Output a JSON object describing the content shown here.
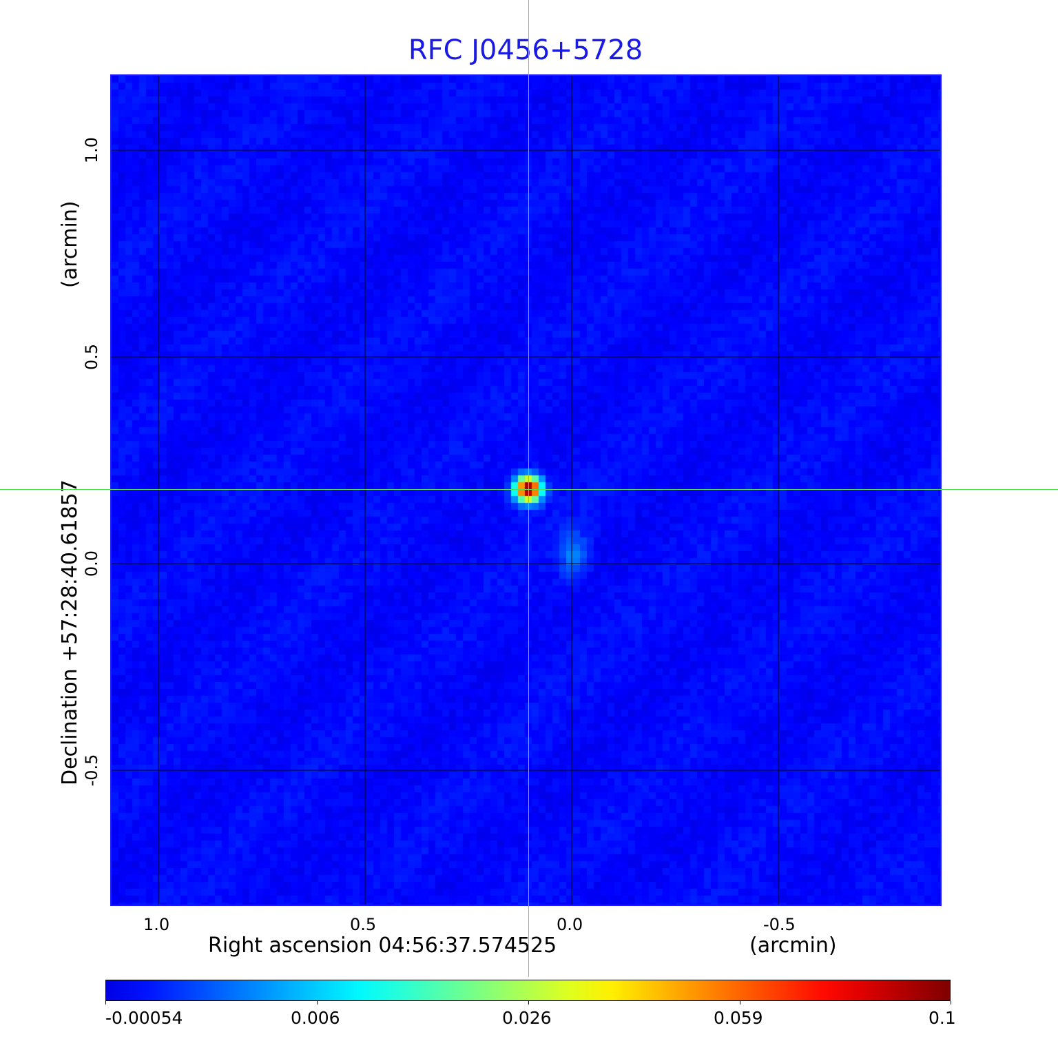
{
  "chart_data": {
    "type": "heatmap",
    "title": "RFC J0456+5728",
    "xlabel": "Right ascension  04:56:37.574525",
    "xunit": "(arcmin)",
    "ylabel": "Declination  +57:28:40.61857",
    "yunit": "(arcmin)",
    "xlim": [
      1.12,
      -0.9
    ],
    "ylim": [
      -0.83,
      1.18
    ],
    "xticks": [
      {
        "value": 1.0,
        "label": "1.0"
      },
      {
        "value": 0.5,
        "label": "0.5"
      },
      {
        "value": 0.0,
        "label": "0.0"
      },
      {
        "value": -0.5,
        "label": "-0.5"
      }
    ],
    "yticks": [
      {
        "value": 1.0,
        "label": "1.0"
      },
      {
        "value": 0.5,
        "label": "0.5"
      },
      {
        "value": 0.0,
        "label": "0.0"
      },
      {
        "value": -0.5,
        "label": "-0.5"
      }
    ],
    "grid": true,
    "crosshair": {
      "x": 0.105,
      "y": 0.18
    },
    "sources": [
      {
        "x": 0.105,
        "y": 0.18,
        "peak": 0.1
      },
      {
        "x": -0.005,
        "y": 0.02,
        "peak": 0.004
      }
    ],
    "colormap": "jet",
    "colorbar": {
      "position": "bottom",
      "ticks": [
        "-0.00054",
        "0.006",
        "0.026",
        "0.059",
        "0.1"
      ],
      "range": [
        -0.00054,
        0.1
      ]
    },
    "colors": {
      "title": "#1a1ae6",
      "grid": "#000000",
      "crosshair": "#55dd55",
      "frame": "#1a1aff"
    }
  }
}
